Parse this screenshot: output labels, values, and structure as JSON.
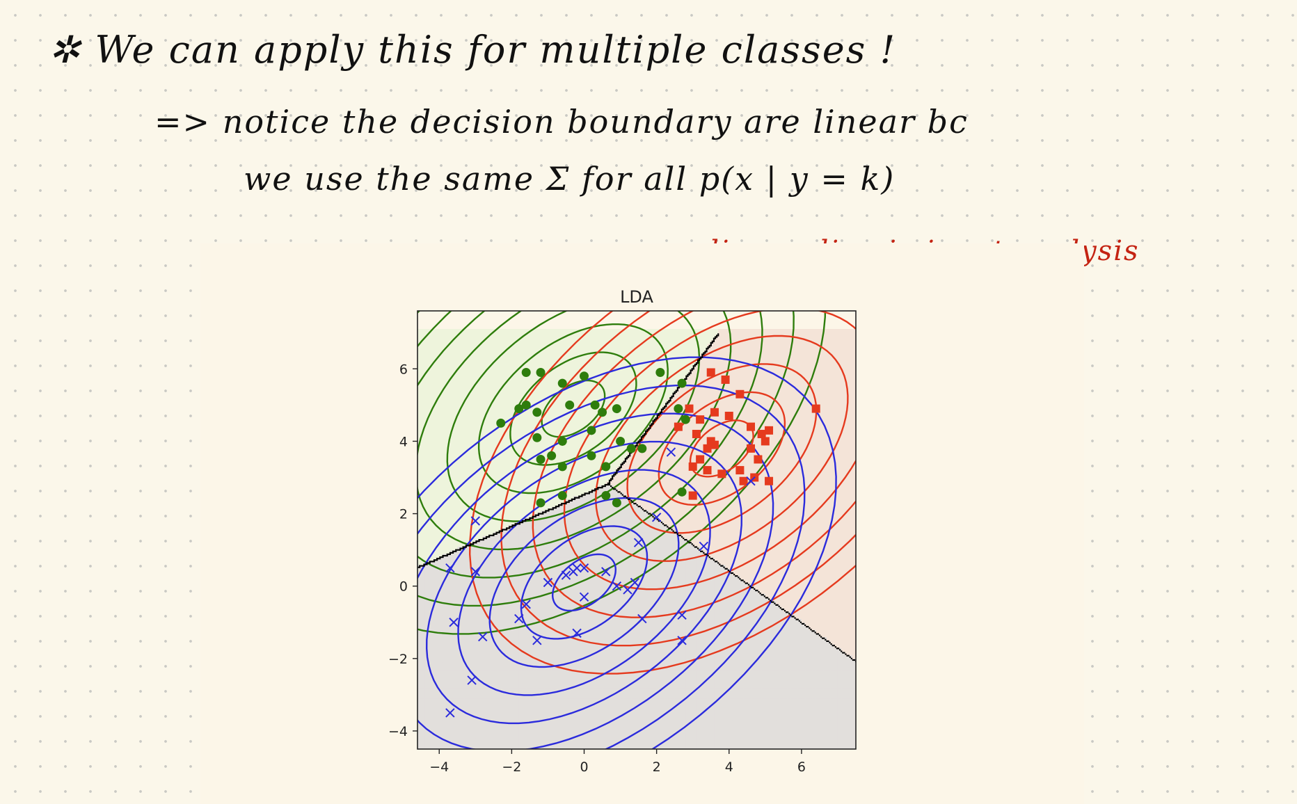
{
  "notes": {
    "line1": "✲ We can apply this for multiple classes !",
    "line2": "=> notice the decision boundary are linear bc",
    "line3": "we use the same Σ for all p(x | y = k)",
    "annotation": "linear discriminant analysis"
  },
  "colors": {
    "ink": "#111111",
    "annotation": "#c42312",
    "class_green": "#2e7d0c",
    "class_red": "#e53a1e",
    "class_blue": "#2b2bdc",
    "boundary": "#000000"
  },
  "chart_data": {
    "type": "scatter",
    "title": "LDA",
    "xlabel": "",
    "ylabel": "",
    "xlim": [
      -4.6,
      7.5
    ],
    "ylim": [
      -4.5,
      7.6
    ],
    "xticks": [
      -4,
      -2,
      0,
      2,
      4,
      6
    ],
    "yticks": [
      -4,
      -2,
      0,
      2,
      4,
      6
    ],
    "grid": false,
    "classes": [
      {
        "marker": "circle",
        "color": "#2e7d0c",
        "region_color": "#eef4dc",
        "mean": [
          -0.3,
          4.9
        ],
        "points": [
          [
            -1.6,
            5.9
          ],
          [
            -1.2,
            5.9
          ],
          [
            -0.6,
            5.6
          ],
          [
            -2.3,
            4.5
          ],
          [
            -1.8,
            4.9
          ],
          [
            -1.6,
            5.0
          ],
          [
            -1.3,
            4.8
          ],
          [
            -0.4,
            5.0
          ],
          [
            0.0,
            5.8
          ],
          [
            0.3,
            5.0
          ],
          [
            0.5,
            4.8
          ],
          [
            0.9,
            4.9
          ],
          [
            -1.3,
            4.1
          ],
          [
            -0.6,
            4.0
          ],
          [
            0.2,
            4.3
          ],
          [
            1.0,
            4.0
          ],
          [
            -1.2,
            3.5
          ],
          [
            -0.9,
            3.6
          ],
          [
            -0.6,
            3.3
          ],
          [
            0.2,
            3.6
          ],
          [
            0.6,
            3.3
          ],
          [
            1.3,
            3.8
          ],
          [
            1.6,
            3.8
          ],
          [
            -1.2,
            2.3
          ],
          [
            -0.6,
            2.5
          ],
          [
            0.6,
            2.5
          ],
          [
            0.9,
            2.3
          ],
          [
            2.1,
            5.9
          ],
          [
            2.7,
            5.6
          ],
          [
            2.6,
            4.9
          ],
          [
            2.8,
            4.6
          ],
          [
            2.7,
            2.6
          ]
        ]
      },
      {
        "marker": "square",
        "color": "#e53a1e",
        "region_color": "#f4e4d8",
        "mean": [
          3.8,
          3.8
        ],
        "points": [
          [
            3.5,
            5.9
          ],
          [
            3.9,
            5.7
          ],
          [
            4.3,
            5.3
          ],
          [
            6.4,
            4.9
          ],
          [
            2.9,
            4.9
          ],
          [
            3.2,
            4.6
          ],
          [
            3.6,
            4.8
          ],
          [
            4.0,
            4.7
          ],
          [
            4.6,
            4.4
          ],
          [
            4.9,
            4.2
          ],
          [
            5.1,
            4.3
          ],
          [
            2.6,
            4.4
          ],
          [
            3.1,
            4.2
          ],
          [
            3.5,
            4.0
          ],
          [
            3.4,
            3.8
          ],
          [
            3.2,
            3.5
          ],
          [
            3.6,
            3.9
          ],
          [
            4.6,
            3.8
          ],
          [
            5.0,
            4.0
          ],
          [
            4.8,
            3.5
          ],
          [
            3.0,
            3.3
          ],
          [
            3.4,
            3.2
          ],
          [
            3.8,
            3.1
          ],
          [
            4.3,
            3.2
          ],
          [
            4.7,
            3.0
          ],
          [
            5.1,
            2.9
          ],
          [
            3.0,
            2.5
          ],
          [
            4.4,
            2.9
          ]
        ]
      },
      {
        "marker": "x",
        "color": "#2b2bdc",
        "region_color": "#e2dfdc",
        "mean": [
          0.0,
          0.1
        ],
        "points": [
          [
            -3.7,
            0.5
          ],
          [
            -3.0,
            0.4
          ],
          [
            -3.0,
            1.8
          ],
          [
            -3.6,
            -1.0
          ],
          [
            -2.8,
            -1.4
          ],
          [
            -3.1,
            -2.6
          ],
          [
            -3.7,
            -3.5
          ],
          [
            -1.6,
            -0.5
          ],
          [
            -1.8,
            -0.9
          ],
          [
            -1.3,
            -1.5
          ],
          [
            -1.0,
            0.1
          ],
          [
            -0.5,
            0.3
          ],
          [
            -0.3,
            0.4
          ],
          [
            -0.2,
            0.5
          ],
          [
            0.0,
            0.5
          ],
          [
            0.0,
            -0.3
          ],
          [
            -0.2,
            -1.3
          ],
          [
            0.6,
            0.4
          ],
          [
            0.9,
            0.0
          ],
          [
            1.2,
            -0.1
          ],
          [
            1.4,
            0.1
          ],
          [
            1.5,
            1.2
          ],
          [
            1.6,
            -0.9
          ],
          [
            2.0,
            1.9
          ],
          [
            2.4,
            3.7
          ],
          [
            3.3,
            1.1
          ],
          [
            2.7,
            -0.8
          ],
          [
            2.7,
            -1.5
          ],
          [
            4.6,
            2.9
          ]
        ]
      }
    ],
    "contour_levels": 8
  }
}
